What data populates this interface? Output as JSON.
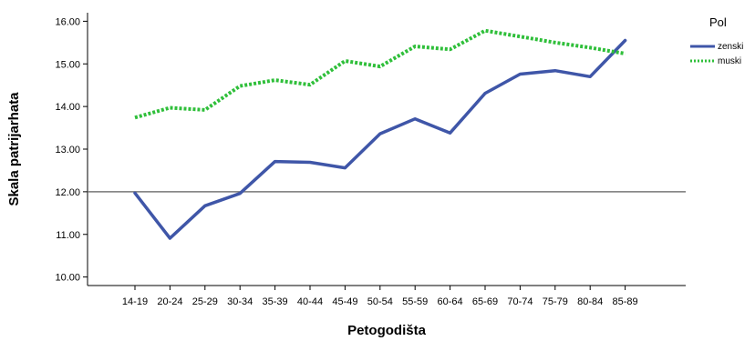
{
  "chart_data": {
    "type": "line",
    "xlabel": "Petogodišta",
    "ylabel": "Skala patrijarhata",
    "categories": [
      "14-19",
      "20-24",
      "25-29",
      "30-34",
      "35-39",
      "40-44",
      "45-49",
      "50-54",
      "55-59",
      "60-64",
      "65-69",
      "70-74",
      "75-79",
      "80-84",
      "85-89"
    ],
    "ylim": [
      9.8,
      16.2
    ],
    "yticks": [
      "10.00",
      "11.00",
      "12.00",
      "13.00",
      "14.00",
      "15.00",
      "16.00"
    ],
    "reference_line": 12.0,
    "legend": {
      "title": "Pol",
      "position": "top-right"
    },
    "series": [
      {
        "name": "zenski",
        "color": "#3f56a8",
        "style": "solid",
        "values": [
          11.97,
          10.91,
          11.67,
          11.96,
          12.71,
          12.69,
          12.56,
          13.36,
          13.71,
          13.38,
          14.31,
          14.76,
          14.84,
          14.7,
          15.55
        ]
      },
      {
        "name": "muski",
        "color": "#2fbf3a",
        "style": "dotted",
        "values": [
          13.74,
          13.97,
          13.92,
          14.48,
          14.62,
          14.51,
          15.07,
          14.94,
          15.41,
          15.34,
          15.78,
          15.64,
          15.5,
          15.38,
          15.24
        ]
      }
    ]
  }
}
